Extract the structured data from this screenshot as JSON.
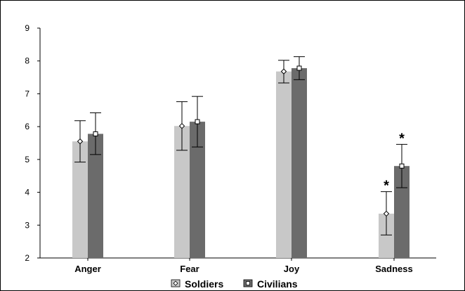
{
  "chart_data": {
    "type": "bar",
    "categories": [
      "Anger",
      "Fear",
      "Joy",
      "Sadness"
    ],
    "series": [
      {
        "name": "Soldiers",
        "color": "#c8c8c8",
        "values": [
          5.55,
          6.02,
          7.68,
          3.35
        ],
        "error_low": [
          4.92,
          5.28,
          7.33,
          2.7
        ],
        "error_high": [
          6.18,
          6.76,
          8.02,
          4.02
        ],
        "significance": [
          "",
          "",
          "",
          "*"
        ]
      },
      {
        "name": "Civilians",
        "color": "#6b6b6b",
        "values": [
          5.78,
          6.15,
          7.78,
          4.8
        ],
        "error_low": [
          5.15,
          5.38,
          7.43,
          4.14
        ],
        "error_high": [
          6.42,
          6.92,
          8.13,
          5.46
        ],
        "significance": [
          "",
          "",
          "",
          "*"
        ]
      }
    ],
    "ylim": [
      2,
      9
    ],
    "yticks": [
      "2",
      "3",
      "4",
      "5",
      "6",
      "7",
      "8",
      "9"
    ],
    "title": "",
    "xlabel": "",
    "ylabel": "",
    "grid": false,
    "legend_position": "bottom"
  }
}
